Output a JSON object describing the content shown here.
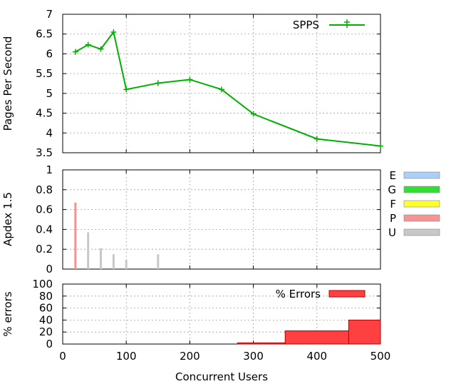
{
  "chart_data": [
    {
      "type": "line",
      "ylabel": "Pages Per Second",
      "xlim": [
        0,
        500
      ],
      "ylim": [
        3.5,
        7
      ],
      "yticks": [
        "3.5",
        "4",
        "4.5",
        "5",
        "5.5",
        "6",
        "6.5",
        "7"
      ],
      "grid": true,
      "legend_position": "top-right",
      "series": [
        {
          "name": "SPPS",
          "color": "#00b000",
          "x": [
            20,
            40,
            60,
            80,
            100,
            150,
            200,
            250,
            300,
            400,
            500
          ],
          "y": [
            6.05,
            6.23,
            6.12,
            6.55,
            5.1,
            5.26,
            5.35,
            5.1,
            4.48,
            3.85,
            3.67
          ]
        }
      ]
    },
    {
      "type": "bar",
      "ylabel": "Apdex 1.5",
      "xlim": [
        0,
        500
      ],
      "ylim": [
        0,
        1
      ],
      "yticks": [
        "0",
        "0.2",
        "0.4",
        "0.6",
        "0.8",
        "1"
      ],
      "grid": true,
      "legend_position": "right",
      "legend": [
        {
          "label": "E",
          "color": "#a8d0f8"
        },
        {
          "label": "G",
          "color": "#30e030"
        },
        {
          "label": "F",
          "color": "#ffff30"
        },
        {
          "label": "P",
          "color": "#f49494"
        },
        {
          "label": "U",
          "color": "#c8c8c8"
        }
      ],
      "bars": [
        {
          "x": 20,
          "y": 0.67,
          "color": "#f49494"
        },
        {
          "x": 40,
          "y": 0.37,
          "color": "#c8c8c8"
        },
        {
          "x": 60,
          "y": 0.21,
          "color": "#c8c8c8"
        },
        {
          "x": 80,
          "y": 0.15,
          "color": "#c8c8c8"
        },
        {
          "x": 100,
          "y": 0.09,
          "color": "#c8c8c8"
        },
        {
          "x": 150,
          "y": 0.15,
          "color": "#c8c8c8"
        }
      ]
    },
    {
      "type": "bar",
      "ylabel": "% errors",
      "xlabel": "Concurrent Users",
      "xlim": [
        0,
        500
      ],
      "ylim": [
        0,
        100
      ],
      "yticks": [
        "0",
        "20",
        "40",
        "60",
        "80",
        "100"
      ],
      "xticks": [
        "0",
        "100",
        "200",
        "300",
        "400",
        "500"
      ],
      "grid": true,
      "legend_position": "top-right",
      "series": [
        {
          "name": "% Errors",
          "color": "#ff4040",
          "steps": [
            {
              "x0": 275,
              "x1": 350,
              "y": 2
            },
            {
              "x0": 350,
              "x1": 450,
              "y": 22
            },
            {
              "x0": 450,
              "x1": 500,
              "y": 40
            }
          ]
        }
      ]
    }
  ]
}
